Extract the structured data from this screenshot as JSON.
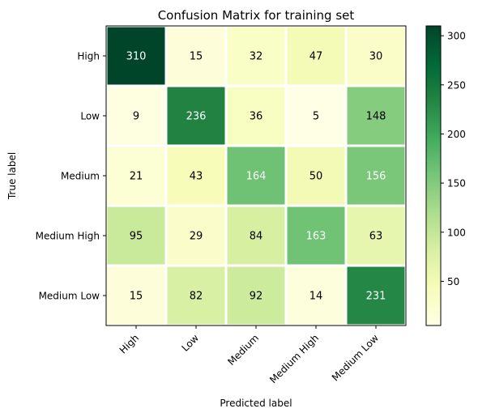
{
  "chart_data": {
    "type": "heatmap",
    "title": "Confusion Matrix for training set",
    "xlabel": "Predicted label",
    "ylabel": "True label",
    "x_categories": [
      "High",
      "Low",
      "Medium",
      "Medium High",
      "Medium Low"
    ],
    "y_categories": [
      "High",
      "Low",
      "Medium",
      "Medium High",
      "Medium Low"
    ],
    "values": [
      [
        310,
        15,
        32,
        47,
        30
      ],
      [
        9,
        236,
        36,
        5,
        148
      ],
      [
        21,
        43,
        164,
        50,
        156
      ],
      [
        95,
        29,
        84,
        163,
        63
      ],
      [
        15,
        82,
        92,
        14,
        231
      ]
    ],
    "colormap": "YlGn",
    "value_range": [
      5,
      310
    ],
    "colorbar_ticks": [
      50,
      100,
      150,
      200,
      250,
      300
    ],
    "colors": {
      "colormap_stops": [
        "#ffffe5",
        "#f7fcb9",
        "#d9f0a3",
        "#addd8e",
        "#78c679",
        "#41ab5d",
        "#238443",
        "#006837",
        "#004529"
      ],
      "text_light": "#ffffff",
      "text_dark": "#000000"
    }
  }
}
